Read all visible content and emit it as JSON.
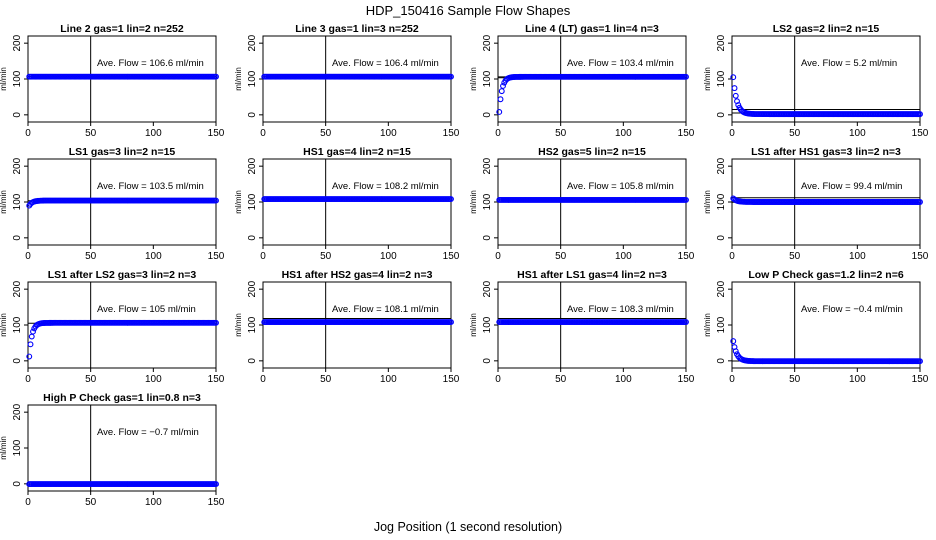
{
  "figure": {
    "title": "HDP_150416  Sample Flow Shapes",
    "xlabel": "Jog Position (1 second resolution)"
  },
  "chart_data": [
    {
      "type": "scatter",
      "title": "Line 2 gas=1 lin=2 n=252",
      "ylabel": "ml/min",
      "xlim": [
        0,
        150
      ],
      "ylim": [
        -20,
        220
      ],
      "xticks": [
        0,
        50,
        100,
        150
      ],
      "yticks": [
        0,
        100,
        200
      ],
      "annotation": "Ave. Flow =  106.6  ml/min",
      "marker_color": "#0000ff",
      "vline_x": 50,
      "hlines": [
        106.6
      ],
      "shape": "flat",
      "initial": 106.6,
      "plateau": 106.6
    },
    {
      "type": "scatter",
      "title": "Line 3 gas=1 lin=3 n=252",
      "ylabel": "ml/min",
      "xlim": [
        0,
        150
      ],
      "ylim": [
        -20,
        220
      ],
      "xticks": [
        0,
        50,
        100,
        150
      ],
      "yticks": [
        0,
        100,
        200
      ],
      "annotation": "Ave. Flow =  106.4  ml/min",
      "marker_color": "#0000ff",
      "vline_x": 50,
      "hlines": [
        106.4
      ],
      "shape": "flat",
      "initial": 104,
      "plateau": 106.4
    },
    {
      "type": "scatter",
      "title": "Line 4 (LT) gas=1 lin=4 n=3",
      "ylabel": "ml/min",
      "xlim": [
        0,
        150
      ],
      "ylim": [
        -20,
        220
      ],
      "xticks": [
        0,
        50,
        100,
        150
      ],
      "yticks": [
        0,
        100,
        200
      ],
      "annotation": "Ave. Flow =  103.4  ml/min",
      "marker_color": "#0000ff",
      "vline_x": 50,
      "hlines": [
        103.4,
        106
      ],
      "shape": "rise",
      "initial": 8,
      "plateau": 106
    },
    {
      "type": "scatter",
      "title": "LS2 gas=2 lin=2 n=15",
      "ylabel": "ml/min",
      "xlim": [
        0,
        150
      ],
      "ylim": [
        -20,
        220
      ],
      "xticks": [
        0,
        50,
        100,
        150
      ],
      "yticks": [
        0,
        100,
        200
      ],
      "annotation": "Ave. Flow =  5.2  ml/min",
      "marker_color": "#0000ff",
      "vline_x": 50,
      "hlines": [
        5.2,
        15
      ],
      "shape": "decay",
      "initial": 105,
      "plateau": 2
    },
    {
      "type": "scatter",
      "title": "LS1 gas=3 lin=2 n=15",
      "ylabel": "ml/min",
      "xlim": [
        0,
        150
      ],
      "ylim": [
        -20,
        220
      ],
      "xticks": [
        0,
        50,
        100,
        150
      ],
      "yticks": [
        0,
        100,
        200
      ],
      "annotation": "Ave. Flow =  103.5  ml/min",
      "marker_color": "#0000ff",
      "vline_x": 50,
      "hlines": [
        103.5
      ],
      "shape": "rise",
      "initial": 90,
      "plateau": 104
    },
    {
      "type": "scatter",
      "title": "HS1 gas=4 lin=2 n=15",
      "ylabel": "ml/min",
      "xlim": [
        0,
        150
      ],
      "ylim": [
        -20,
        220
      ],
      "xticks": [
        0,
        50,
        100,
        150
      ],
      "yticks": [
        0,
        100,
        200
      ],
      "annotation": "Ave. Flow =  108.2  ml/min",
      "marker_color": "#0000ff",
      "vline_x": 50,
      "hlines": [
        108.2
      ],
      "shape": "flat",
      "initial": 108.2,
      "plateau": 108.2
    },
    {
      "type": "scatter",
      "title": "HS2 gas=5 lin=2 n=15",
      "ylabel": "ml/min",
      "xlim": [
        0,
        150
      ],
      "ylim": [
        -20,
        220
      ],
      "xticks": [
        0,
        50,
        100,
        150
      ],
      "yticks": [
        0,
        100,
        200
      ],
      "annotation": "Ave. Flow =  105.8  ml/min",
      "marker_color": "#0000ff",
      "vline_x": 50,
      "hlines": [
        105.8
      ],
      "shape": "flat",
      "initial": 105.8,
      "plateau": 105.8
    },
    {
      "type": "scatter",
      "title": "LS1 after HS1 gas=3 lin=2 n=3",
      "ylabel": "ml/min",
      "xlim": [
        0,
        150
      ],
      "ylim": [
        -20,
        220
      ],
      "xticks": [
        0,
        50,
        100,
        150
      ],
      "yticks": [
        0,
        100,
        200
      ],
      "annotation": "Ave. Flow =  99.4  ml/min",
      "marker_color": "#0000ff",
      "vline_x": 50,
      "hlines": [
        99.4,
        112
      ],
      "shape": "decay",
      "initial": 110,
      "plateau": 100
    },
    {
      "type": "scatter",
      "title": "LS1 after LS2 gas=3 lin=2 n=3",
      "ylabel": "ml/min",
      "xlim": [
        0,
        150
      ],
      "ylim": [
        -20,
        220
      ],
      "xticks": [
        0,
        50,
        100,
        150
      ],
      "yticks": [
        0,
        100,
        200
      ],
      "annotation": "Ave. Flow =  105   ml/min",
      "marker_color": "#0000ff",
      "vline_x": 50,
      "hlines": [
        105
      ],
      "shape": "rise",
      "initial": 12,
      "plateau": 106
    },
    {
      "type": "scatter",
      "title": "HS1 after HS2 gas=4 lin=2 n=3",
      "ylabel": "ml/min",
      "xlim": [
        0,
        150
      ],
      "ylim": [
        -20,
        220
      ],
      "xticks": [
        0,
        50,
        100,
        150
      ],
      "yticks": [
        0,
        100,
        200
      ],
      "annotation": "Ave. Flow =  108.1  ml/min",
      "marker_color": "#0000ff",
      "vline_x": 50,
      "hlines": [
        108.1,
        118
      ],
      "shape": "flat",
      "initial": 108.1,
      "plateau": 108.1
    },
    {
      "type": "scatter",
      "title": "HS1 after LS1 gas=4 lin=2 n=3",
      "ylabel": "ml/min",
      "xlim": [
        0,
        150
      ],
      "ylim": [
        -20,
        220
      ],
      "xticks": [
        0,
        50,
        100,
        150
      ],
      "yticks": [
        0,
        100,
        200
      ],
      "annotation": "Ave. Flow =  108.3  ml/min",
      "marker_color": "#0000ff",
      "vline_x": 50,
      "hlines": [
        108.3,
        118
      ],
      "shape": "flat",
      "initial": 108.3,
      "plateau": 108.3
    },
    {
      "type": "scatter",
      "title": "Low P Check gas=1.2 lin=2 n=6",
      "ylabel": "ml/min",
      "xlim": [
        0,
        150
      ],
      "ylim": [
        -20,
        220
      ],
      "xticks": [
        0,
        50,
        100,
        150
      ],
      "yticks": [
        0,
        100,
        200
      ],
      "annotation": "Ave. Flow =  −0.4  ml/min",
      "marker_color": "#0000ff",
      "vline_x": 50,
      "hlines": [
        -0.4
      ],
      "shape": "decay",
      "initial": 55,
      "plateau": -1
    },
    {
      "type": "scatter",
      "title": "High P Check gas=1 lin=0.8 n=3",
      "ylabel": "ml/min",
      "xlim": [
        0,
        150
      ],
      "ylim": [
        -20,
        220
      ],
      "xticks": [
        0,
        50,
        100,
        150
      ],
      "yticks": [
        0,
        100,
        200
      ],
      "annotation": "Ave. Flow =  −0.7  ml/min",
      "marker_color": "#0000ff",
      "vline_x": 50,
      "hlines": [
        -0.7
      ],
      "shape": "flat",
      "initial": -0.7,
      "plateau": -0.7
    }
  ]
}
